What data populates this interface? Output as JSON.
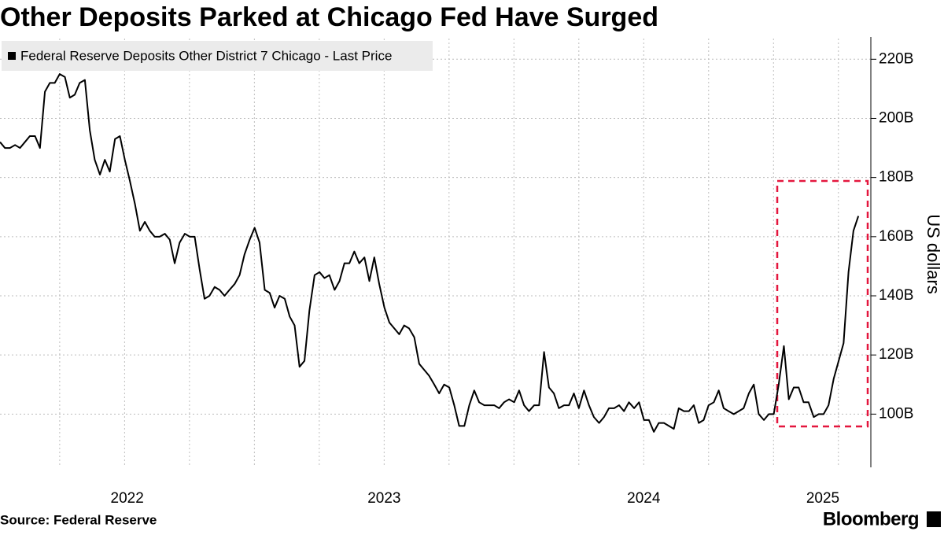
{
  "chart_data": {
    "type": "line",
    "title": "Other Deposits Parked at Chicago Fed Have Surged",
    "source": "Source: Federal Reserve",
    "brand": "Bloomberg",
    "y_axis_label": "US dollars",
    "xlim": [
      2022.02,
      2025.375
    ],
    "ylim": [
      82,
      227
    ],
    "xticks": [
      {
        "value": 2022.51,
        "label": "2022"
      },
      {
        "value": 2023.5,
        "label": "2023"
      },
      {
        "value": 2024.5,
        "label": "2024"
      },
      {
        "value": 2025.19,
        "label": "2025"
      }
    ],
    "xgrid": [
      2022.25,
      2022.5,
      2022.75,
      2023.0,
      2023.25,
      2023.5,
      2023.75,
      2024.0,
      2024.25,
      2024.5,
      2024.75,
      2025.0,
      2025.25
    ],
    "yticks": [
      {
        "value": 100,
        "label": "100B"
      },
      {
        "value": 120,
        "label": "120B"
      },
      {
        "value": 140,
        "label": "140B"
      },
      {
        "value": 160,
        "label": "160B"
      },
      {
        "value": 180,
        "label": "180B"
      },
      {
        "value": 200,
        "label": "200B"
      },
      {
        "value": 220,
        "label": "220B"
      }
    ],
    "grid": true,
    "legend": "top-left",
    "x": [
      2022.02,
      2022.039,
      2022.058,
      2022.078,
      2022.097,
      2022.116,
      2022.135,
      2022.155,
      2022.174,
      2022.193,
      2022.212,
      2022.231,
      2022.25,
      2022.27,
      2022.289,
      2022.308,
      2022.327,
      2022.347,
      2022.366,
      2022.385,
      2022.405,
      2022.424,
      2022.443,
      2022.463,
      2022.482,
      2022.501,
      2022.52,
      2022.54,
      2022.559,
      2022.578,
      2022.597,
      2022.616,
      2022.635,
      2022.655,
      2022.674,
      2022.693,
      2022.712,
      2022.732,
      2022.751,
      2022.77,
      2022.789,
      2022.808,
      2022.827,
      2022.847,
      2022.866,
      2022.885,
      2022.904,
      2022.924,
      2022.943,
      2022.962,
      2022.982,
      2023.001,
      2023.02,
      2023.04,
      2023.059,
      2023.078,
      2023.097,
      2023.117,
      2023.136,
      2023.155,
      2023.174,
      2023.193,
      2023.212,
      2023.232,
      2023.251,
      2023.27,
      2023.289,
      2023.309,
      2023.328,
      2023.347,
      2023.366,
      2023.385,
      2023.404,
      2023.424,
      2023.443,
      2023.462,
      2023.481,
      2023.501,
      2023.52,
      2023.539,
      2023.558,
      2023.577,
      2023.596,
      2023.616,
      2023.635,
      2023.654,
      2023.673,
      2023.693,
      2023.712,
      2023.731,
      2023.751,
      2023.77,
      2023.789,
      2023.809,
      2023.828,
      2023.847,
      2023.866,
      2023.886,
      2023.905,
      2023.924,
      2023.943,
      2023.962,
      2023.981,
      2024.001,
      2024.02,
      2024.039,
      2024.058,
      2024.078,
      2024.097,
      2024.116,
      2024.135,
      2024.154,
      2024.173,
      2024.193,
      2024.212,
      2024.231,
      2024.25,
      2024.27,
      2024.289,
      2024.308,
      2024.328,
      2024.347,
      2024.366,
      2024.386,
      2024.405,
      2024.424,
      2024.443,
      2024.463,
      2024.482,
      2024.501,
      2024.52,
      2024.539,
      2024.558,
      2024.578,
      2024.597,
      2024.616,
      2024.635,
      2024.655,
      2024.674,
      2024.693,
      2024.712,
      2024.731,
      2024.75,
      2024.77,
      2024.789,
      2024.808,
      2024.827,
      2024.847,
      2024.866,
      2024.885,
      2024.905,
      2024.924,
      2024.943,
      2024.963,
      2024.982,
      2025.001,
      2025.02,
      2025.04,
      2025.059,
      2025.078,
      2025.097,
      2025.116,
      2025.135,
      2025.155,
      2025.174,
      2025.193,
      2025.212,
      2025.232,
      2025.251,
      2025.27,
      2025.289,
      2025.308,
      2025.327
    ],
    "series": [
      {
        "name": "Federal Reserve Deposits Other District 7 Chicago - Last Price",
        "color": "#000000",
        "values": [
          192,
          190,
          190,
          191,
          190,
          192,
          194,
          194,
          190,
          209,
          212,
          212,
          215,
          214,
          207,
          208,
          212,
          213,
          196,
          186,
          181,
          186,
          182,
          193,
          194,
          186,
          179,
          171,
          162,
          165,
          162,
          160,
          160,
          161,
          159,
          151,
          158,
          161,
          160,
          160,
          149,
          139,
          140,
          143,
          142,
          140,
          142,
          144,
          147,
          154,
          159,
          163,
          158,
          142,
          141,
          136,
          140,
          139,
          133,
          130,
          116,
          118,
          135,
          147,
          148,
          146,
          147,
          142,
          145,
          151,
          151,
          155,
          151,
          153,
          145,
          153,
          144,
          136,
          131,
          129,
          127,
          130,
          129,
          126,
          117,
          115,
          113,
          110,
          107,
          110,
          109,
          103,
          96,
          96,
          103,
          108,
          104,
          103,
          103,
          103,
          102,
          104,
          105,
          104,
          108,
          103,
          101,
          103,
          103,
          121,
          109,
          107,
          102,
          103,
          103,
          107,
          102,
          108,
          103,
          99,
          97,
          99,
          102,
          102,
          103,
          101,
          104,
          102,
          104,
          98,
          98,
          94,
          97,
          97,
          96,
          95,
          102,
          101,
          101,
          103,
          97,
          98,
          103,
          104,
          108,
          102,
          101,
          100,
          101,
          102,
          107,
          110,
          100,
          98,
          100,
          100,
          110,
          123,
          105,
          109,
          109,
          104,
          104,
          99,
          100,
          100,
          103,
          112,
          118,
          124,
          148,
          162,
          167
        ]
      }
    ]
  }
}
